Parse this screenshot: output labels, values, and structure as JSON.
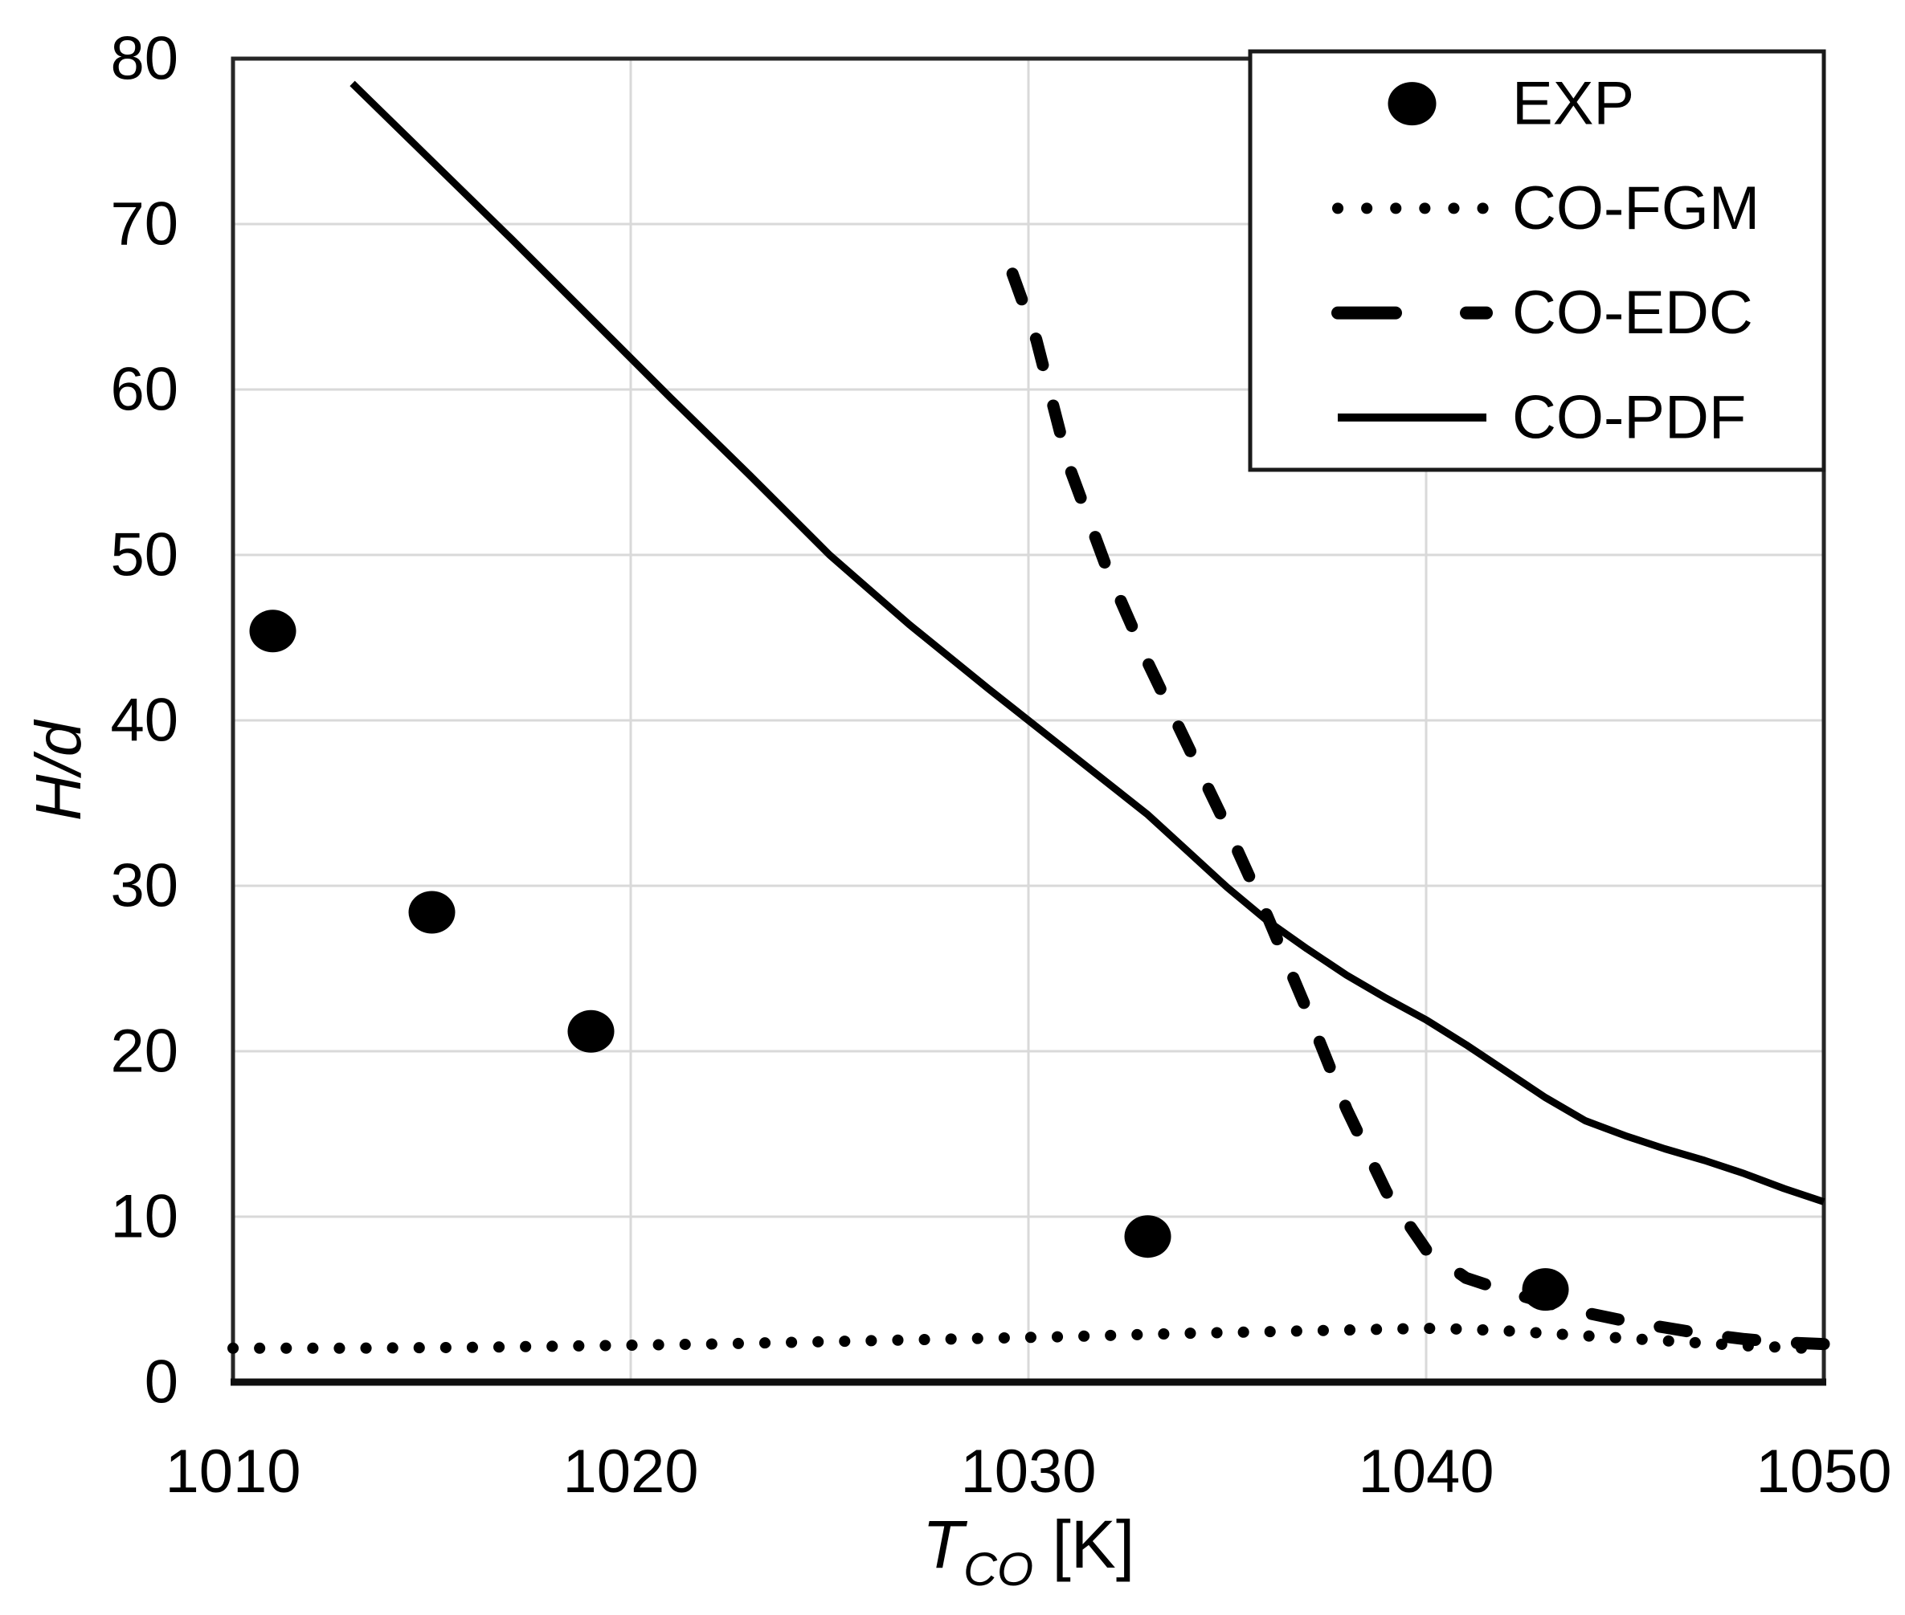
{
  "chart_data": {
    "type": "line",
    "title": "",
    "xlabel": {
      "base": "T",
      "subscript": "CO",
      "unit": " [K]"
    },
    "ylabel": "H/d",
    "xlim": [
      1010,
      1050
    ],
    "ylim": [
      0,
      80
    ],
    "x_ticks": [
      "1010",
      "1020",
      "1030",
      "1040",
      "1050"
    ],
    "y_ticks": [
      "0",
      "10",
      "20",
      "30",
      "40",
      "50",
      "60",
      "70",
      "80"
    ],
    "grid": true,
    "legend_position": "top-right",
    "colors": {
      "series": "#000000",
      "grid": "#d9d9d9",
      "border": "#262626",
      "axis": "#0f0f0f",
      "background": "#ffffff",
      "text": "#000000"
    },
    "series": [
      {
        "name": "EXP",
        "kind": "scatter",
        "marker": "filled-circle",
        "points": [
          [
            1011,
            45.4
          ],
          [
            1015,
            28.4
          ],
          [
            1019,
            21.2
          ],
          [
            1033,
            8.8
          ],
          [
            1043,
            5.6
          ]
        ]
      },
      {
        "name": "CO-FGM",
        "kind": "line",
        "style": "dotted",
        "points": [
          [
            1010,
            2.05
          ],
          [
            1013,
            2.05
          ],
          [
            1016,
            2.1
          ],
          [
            1019,
            2.2
          ],
          [
            1022,
            2.3
          ],
          [
            1025,
            2.45
          ],
          [
            1028,
            2.6
          ],
          [
            1031,
            2.75
          ],
          [
            1034,
            2.95
          ],
          [
            1036,
            3.05
          ],
          [
            1038,
            3.15
          ],
          [
            1040,
            3.25
          ],
          [
            1041,
            3.2
          ],
          [
            1042,
            3.1
          ],
          [
            1043,
            2.95
          ],
          [
            1044,
            2.8
          ],
          [
            1045,
            2.65
          ],
          [
            1046,
            2.5
          ],
          [
            1047,
            2.35
          ],
          [
            1048,
            2.2
          ],
          [
            1049,
            2.1
          ],
          [
            1050,
            2.0
          ]
        ]
      },
      {
        "name": "CO-EDC",
        "kind": "line",
        "style": "dashed",
        "points": [
          [
            1029.6,
            67
          ],
          [
            1030.2,
            63
          ],
          [
            1031,
            55.5
          ],
          [
            1032,
            49
          ],
          [
            1033,
            43.5
          ],
          [
            1034,
            38.5
          ],
          [
            1035,
            33.5
          ],
          [
            1036,
            28.2
          ],
          [
            1037,
            22.5
          ],
          [
            1038,
            16.5
          ],
          [
            1039,
            11.5
          ],
          [
            1040,
            8.0
          ],
          [
            1041,
            6.3
          ],
          [
            1042,
            5.5
          ],
          [
            1043,
            4.8
          ],
          [
            1044,
            4.2
          ],
          [
            1045,
            3.7
          ],
          [
            1046,
            3.3
          ],
          [
            1047,
            2.9
          ],
          [
            1048,
            2.6
          ],
          [
            1049,
            2.4
          ],
          [
            1050,
            2.3
          ]
        ]
      },
      {
        "name": "CO-PDF",
        "kind": "line",
        "style": "solid",
        "points": [
          [
            1013,
            78.5
          ],
          [
            1015,
            73.8
          ],
          [
            1017,
            69.1
          ],
          [
            1019,
            64.3
          ],
          [
            1021,
            59.5
          ],
          [
            1023,
            54.8
          ],
          [
            1025,
            50.0
          ],
          [
            1027,
            45.8
          ],
          [
            1029,
            41.9
          ],
          [
            1031,
            38.1
          ],
          [
            1033,
            34.3
          ],
          [
            1034,
            32.1
          ],
          [
            1035,
            29.9
          ],
          [
            1036,
            27.9
          ],
          [
            1037,
            26.2
          ],
          [
            1038,
            24.6
          ],
          [
            1039,
            23.2
          ],
          [
            1040,
            21.9
          ],
          [
            1041,
            20.4
          ],
          [
            1042,
            18.8
          ],
          [
            1043,
            17.2
          ],
          [
            1044,
            15.8
          ],
          [
            1045,
            14.9
          ],
          [
            1046,
            14.1
          ],
          [
            1047,
            13.4
          ],
          [
            1048,
            12.6
          ],
          [
            1049,
            11.7
          ],
          [
            1050,
            10.9
          ]
        ]
      }
    ]
  }
}
